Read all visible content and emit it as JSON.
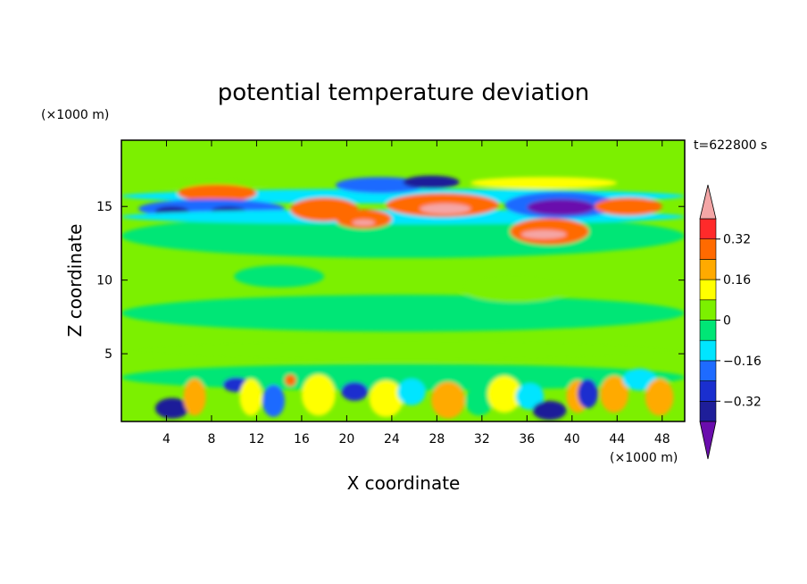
{
  "chart_data": {
    "type": "heatmap",
    "title": "potential temperature deviation",
    "time_label": "t=622800 s",
    "xlabel": "X coordinate",
    "ylabel": "Z coordinate",
    "x_unit": "(×1000 m)",
    "y_unit": "(×1000 m)",
    "xlim": [
      0,
      50
    ],
    "ylim": [
      0.4,
      19.5
    ],
    "x_ticks": [
      4,
      8,
      12,
      16,
      20,
      24,
      28,
      32,
      36,
      40,
      44,
      48
    ],
    "y_ticks": [
      5,
      10,
      15
    ],
    "colorbar": {
      "labels": [
        {
          "value": 0.32,
          "text": "0.32"
        },
        {
          "value": 0.16,
          "text": "0.16"
        },
        {
          "value": 0,
          "text": "0"
        },
        {
          "value": -0.16,
          "text": "−0.16"
        },
        {
          "value": -0.32,
          "text": "−0.32"
        }
      ],
      "levels": [
        {
          "min": null,
          "max": -0.4,
          "color": "#6a0dad"
        },
        {
          "min": -0.4,
          "max": -0.32,
          "color": "#1e1e99"
        },
        {
          "min": -0.32,
          "max": -0.24,
          "color": "#1a2fcf"
        },
        {
          "min": -0.24,
          "max": -0.16,
          "color": "#1e6bff"
        },
        {
          "min": -0.16,
          "max": -0.08,
          "color": "#00e5ff"
        },
        {
          "min": -0.08,
          "max": 0,
          "color": "#00e676"
        },
        {
          "min": 0,
          "max": 0.08,
          "color": "#7cf000"
        },
        {
          "min": 0.08,
          "max": 0.16,
          "color": "#ffff00"
        },
        {
          "min": 0.16,
          "max": 0.24,
          "color": "#ffaa00"
        },
        {
          "min": 0.24,
          "max": 0.32,
          "color": "#ff6a00"
        },
        {
          "min": 0.32,
          "max": 0.4,
          "color": "#ff2a2a"
        },
        {
          "min": 0.4,
          "max": null,
          "color": "#f4a6a6"
        }
      ]
    },
    "features": [
      {
        "x": 0,
        "y": 11.5,
        "w": 50,
        "h": 3,
        "value": -0.04
      },
      {
        "x": 3,
        "y": 16.3,
        "w": 10,
        "h": 0.8,
        "value": 0.07
      },
      {
        "x": 0,
        "y": 15.2,
        "w": 50,
        "h": 1.0,
        "value": -0.12
      },
      {
        "x": 5,
        "y": 15.3,
        "w": 7,
        "h": 1.2,
        "value": 0.25
      },
      {
        "x": 1.5,
        "y": 14.2,
        "w": 13,
        "h": 1.3,
        "value": -0.2
      },
      {
        "x": 3,
        "y": 14.3,
        "w": 3,
        "h": 0.7,
        "value": -0.35
      },
      {
        "x": 8,
        "y": 14.4,
        "w": 3,
        "h": 0.6,
        "value": -0.34
      },
      {
        "x": 0,
        "y": 13.8,
        "w": 50,
        "h": 1.0,
        "value": -0.1
      },
      {
        "x": 15,
        "y": 14.0,
        "w": 6,
        "h": 1.6,
        "value": 0.27
      },
      {
        "x": 19,
        "y": 13.5,
        "w": 5,
        "h": 1.3,
        "value": 0.3
      },
      {
        "x": 20.5,
        "y": 13.7,
        "w": 2,
        "h": 0.4,
        "value": 0.45
      },
      {
        "x": 23.5,
        "y": 14.3,
        "w": 10,
        "h": 1.6,
        "value": 0.3
      },
      {
        "x": 26.5,
        "y": 14.5,
        "w": 4.5,
        "h": 0.7,
        "value": 0.45
      },
      {
        "x": 19,
        "y": 15.9,
        "w": 8,
        "h": 1.1,
        "value": -0.22
      },
      {
        "x": 25,
        "y": 16.2,
        "w": 5,
        "h": 0.9,
        "value": -0.36
      },
      {
        "x": 31,
        "y": 16.2,
        "w": 13,
        "h": 0.8,
        "value": 0.15
      },
      {
        "x": 34,
        "y": 14.2,
        "w": 10,
        "h": 1.8,
        "value": -0.2
      },
      {
        "x": 36,
        "y": 14.4,
        "w": 6,
        "h": 1.1,
        "value": -0.43
      },
      {
        "x": 34.5,
        "y": 12.4,
        "w": 7,
        "h": 1.8,
        "value": 0.3
      },
      {
        "x": 35.5,
        "y": 12.8,
        "w": 4,
        "h": 0.6,
        "value": 0.45
      },
      {
        "x": 42,
        "y": 14.4,
        "w": 6,
        "h": 1.2,
        "value": 0.25
      },
      {
        "x": 0,
        "y": 2.5,
        "w": 50,
        "h": 1.8,
        "value": -0.05
      },
      {
        "x": 3,
        "y": 0.6,
        "w": 3,
        "h": 1.4,
        "value": -0.36
      },
      {
        "x": 5.5,
        "y": 0.8,
        "w": 2,
        "h": 2.5,
        "value": 0.2
      },
      {
        "x": 9,
        "y": 2.4,
        "w": 2.4,
        "h": 1.0,
        "value": -0.3
      },
      {
        "x": 10.5,
        "y": 0.8,
        "w": 2,
        "h": 2.5,
        "value": 0.15
      },
      {
        "x": 12.5,
        "y": 0.7,
        "w": 2,
        "h": 2.2,
        "value": -0.2
      },
      {
        "x": 14.5,
        "y": 2.8,
        "w": 1,
        "h": 0.8,
        "value": 0.3
      },
      {
        "x": 16,
        "y": 0.8,
        "w": 3,
        "h": 2.8,
        "value": 0.1
      },
      {
        "x": 19.5,
        "y": 1.8,
        "w": 2.4,
        "h": 1.3,
        "value": -0.3
      },
      {
        "x": 22,
        "y": 0.7,
        "w": 3,
        "h": 2.5,
        "value": 0.15
      },
      {
        "x": 24.5,
        "y": 1.5,
        "w": 2.5,
        "h": 1.8,
        "value": -0.1
      },
      {
        "x": 27.5,
        "y": 0.6,
        "w": 3,
        "h": 2.5,
        "value": 0.18
      },
      {
        "x": 30.5,
        "y": 0.8,
        "w": 2.5,
        "h": 2.0,
        "value": -0.05
      },
      {
        "x": 32.5,
        "y": 1.0,
        "w": 3,
        "h": 2.5,
        "value": 0.15
      },
      {
        "x": 35,
        "y": 1.2,
        "w": 2.5,
        "h": 1.8,
        "value": -0.15
      },
      {
        "x": 36.5,
        "y": 0.5,
        "w": 3,
        "h": 1.3,
        "value": -0.36
      },
      {
        "x": 39.5,
        "y": 1.0,
        "w": 2,
        "h": 2.2,
        "value": 0.2
      },
      {
        "x": 40.5,
        "y": 1.3,
        "w": 1.8,
        "h": 2.0,
        "value": -0.3
      },
      {
        "x": 42.5,
        "y": 1.0,
        "w": 2.5,
        "h": 2.5,
        "value": 0.2
      },
      {
        "x": 44.5,
        "y": 2.5,
        "w": 3,
        "h": 1.5,
        "value": -0.12
      },
      {
        "x": 46.5,
        "y": 0.8,
        "w": 2.5,
        "h": 2.5,
        "value": 0.22
      },
      {
        "x": 0,
        "y": 4.5,
        "w": 50,
        "h": 1.5,
        "value": 0.04
      },
      {
        "x": 0,
        "y": 6.5,
        "w": 50,
        "h": 2.5,
        "value": -0.02
      },
      {
        "x": 10,
        "y": 9.5,
        "w": 8,
        "h": 1.5,
        "value": -0.03
      },
      {
        "x": 30,
        "y": 8.5,
        "w": 10,
        "h": 2.0,
        "value": 0.03
      }
    ]
  }
}
